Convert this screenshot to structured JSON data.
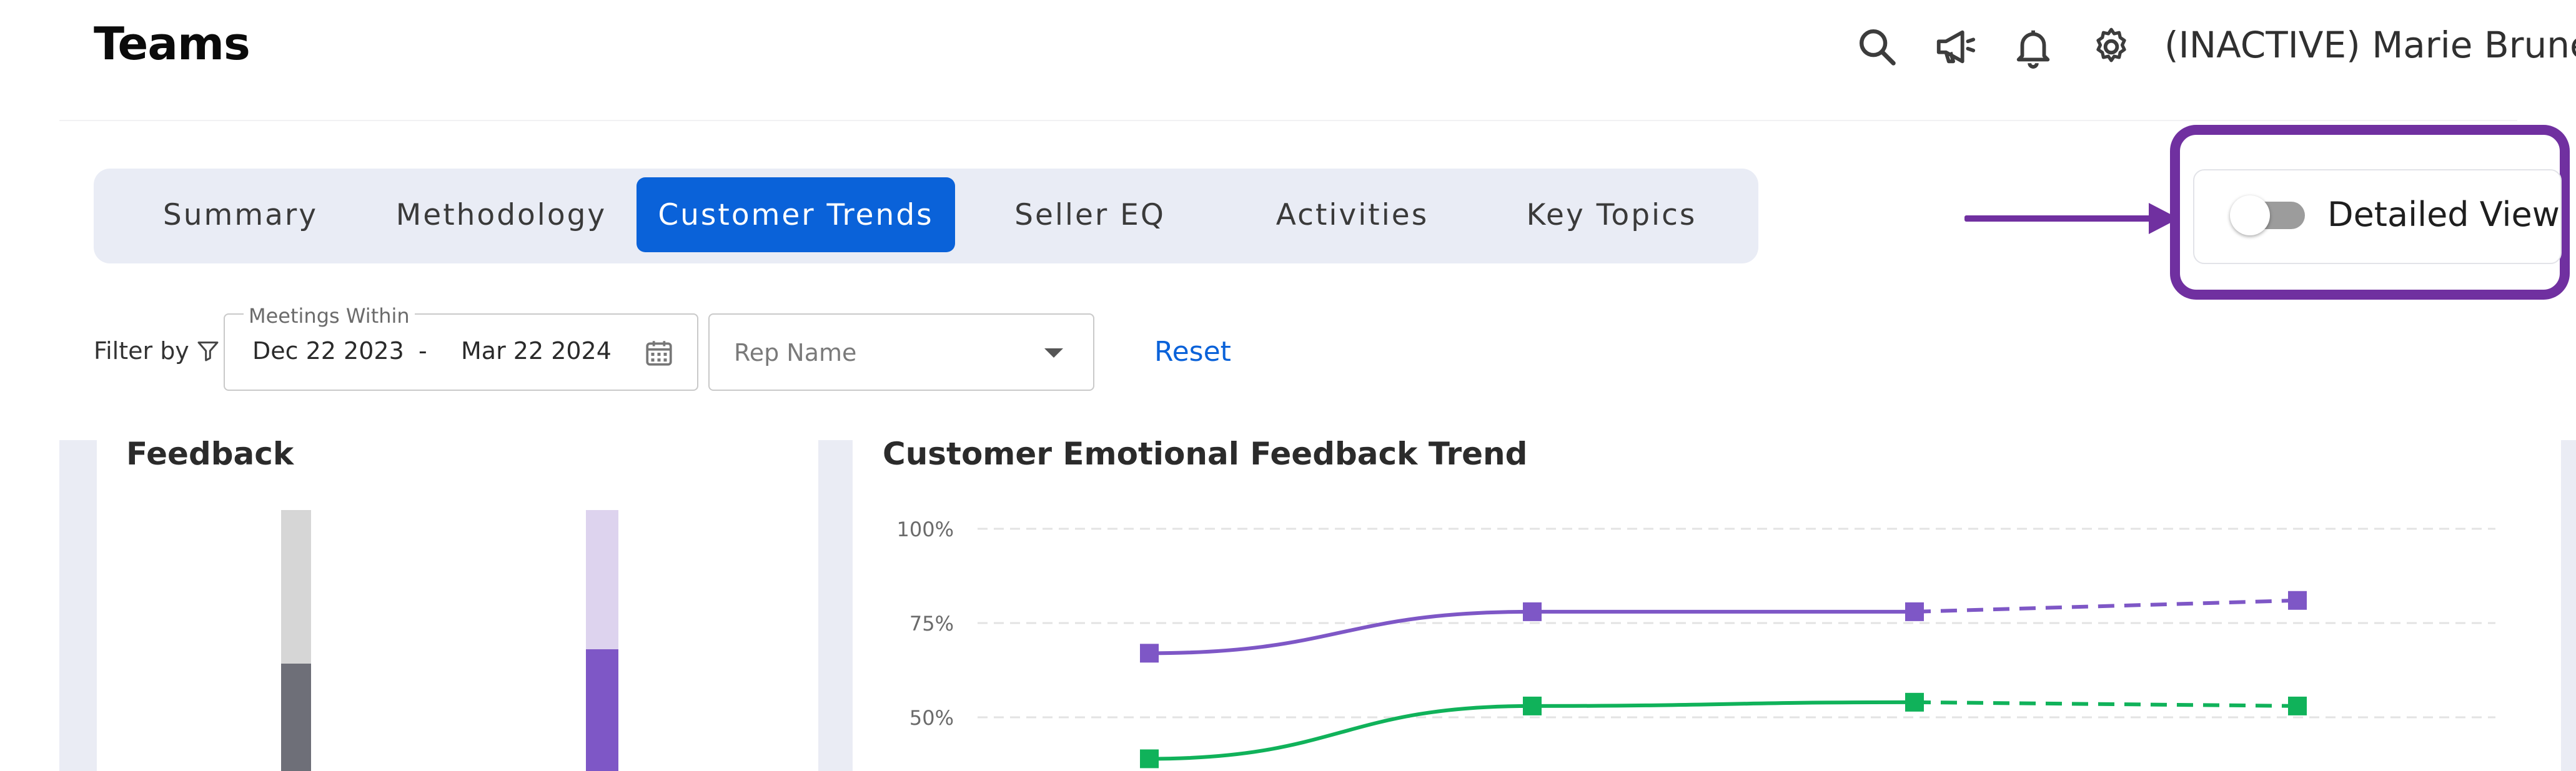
{
  "header": {
    "title": "Teams",
    "user_name": "(INACTIVE) Marie Brunet",
    "icons": [
      "search-icon",
      "megaphone-icon",
      "bell-icon",
      "gear-icon",
      "chevron-down-icon"
    ]
  },
  "tabs": [
    {
      "label": "Summary",
      "active": false
    },
    {
      "label": "Methodology",
      "active": false
    },
    {
      "label": "Customer Trends",
      "active": true
    },
    {
      "label": "Seller EQ",
      "active": false
    },
    {
      "label": "Activities",
      "active": false
    },
    {
      "label": "Key Topics",
      "active": false
    }
  ],
  "detailed_view": {
    "label": "Detailed View",
    "enabled": false
  },
  "filters": {
    "label": "Filter by",
    "meetings_within_label": "Meetings Within",
    "start_date": "Dec 22 2023",
    "date_separator": "-",
    "end_date": "Mar 22 2024",
    "rep_name_placeholder": "Rep Name",
    "reset_label": "Reset"
  },
  "feedback_panel": {
    "title": "Feedback",
    "bars": [
      {
        "color_top": "#d6d6d6",
        "color_bottom": "#6e6f78",
        "bottom_fraction": 0.75
      },
      {
        "color_top": "#ddd3ee",
        "color_bottom": "#7e57c6",
        "bottom_fraction": 0.85
      }
    ]
  },
  "trend_panel": {
    "title": "Customer Emotional Feedback Trend"
  },
  "colors": {
    "accent": "#0a62d9",
    "highlight": "#7030a0",
    "series_purple": "#7e57c6",
    "series_green": "#10b25a"
  },
  "chart_data": {
    "type": "line",
    "title": "Customer Emotional Feedback Trend",
    "x": [
      1,
      2,
      3,
      4
    ],
    "y_ticks": [
      "100%",
      "75%",
      "50%"
    ],
    "ylim": [
      25,
      100
    ],
    "grid": true,
    "series": [
      {
        "values": [
          67,
          78,
          78,
          81
        ],
        "color": "#7e57c6",
        "dashed_from_index": 2
      },
      {
        "values": [
          39,
          53,
          54,
          53
        ],
        "color": "#10b25a",
        "dashed_from_index": 2
      }
    ]
  }
}
